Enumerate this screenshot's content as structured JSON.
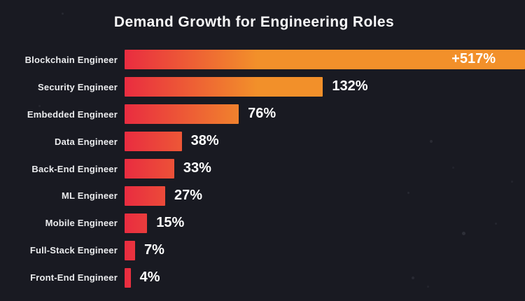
{
  "title": "Demand Growth for Engineering Roles",
  "chart_data": {
    "type": "bar",
    "orientation": "horizontal",
    "title": "Demand Growth for Engineering Roles",
    "xlabel": "",
    "ylabel": "",
    "grid": false,
    "legend": false,
    "categories": [
      "Blockchain Engineer",
      "Security Engineer",
      "Embedded Engineer",
      "Data Engineer",
      "Back-End Engineer",
      "ML Engineer",
      "Mobile Engineer",
      "Full-Stack Engineer",
      "Front-End Engineer"
    ],
    "values": [
      517,
      132,
      76,
      38,
      33,
      27,
      15,
      7,
      4
    ],
    "value_labels": [
      "+517%",
      "132%",
      "76%",
      "38%",
      "33%",
      "27%",
      "15%",
      "7%",
      "4%"
    ],
    "unit": "%",
    "colors": {
      "background": "#191a22",
      "bar_gradient_start": "#e92c40",
      "bar_gradient_end": "#f2902a",
      "title_text": "#f7f7f8",
      "category_text": "#ebecee",
      "value_text": "#ffffff"
    }
  }
}
